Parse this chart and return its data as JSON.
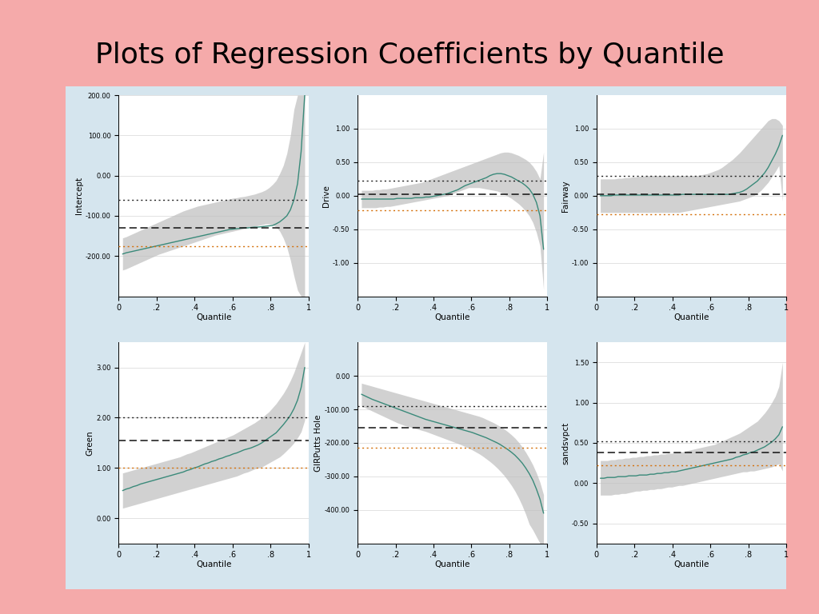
{
  "title": "Plots of Regression Coefficients by Quantile",
  "title_fontsize": 26,
  "background_color": "#F5AAAA",
  "panel_color": "#D5E5EE",
  "subplots": [
    {
      "ylabel": "Intercept",
      "ylim": [
        -300,
        200
      ],
      "yticks": [
        -200,
        -100,
        0,
        100,
        200
      ],
      "ols_coef": -130,
      "ols_upper": -60,
      "ols_lower": -175,
      "qr_line": [
        -195,
        -192,
        -190,
        -188,
        -186,
        -184,
        -182,
        -180,
        -178,
        -176,
        -174,
        -172,
        -170,
        -168,
        -166,
        -164,
        -162,
        -160,
        -158,
        -156,
        -154,
        -152,
        -150,
        -148,
        -146,
        -144,
        -142,
        -140,
        -138,
        -136,
        -134,
        -133,
        -132,
        -131,
        -130,
        -130,
        -129,
        -128,
        -128,
        -127,
        -126,
        -125,
        -124,
        -120,
        -115,
        -108,
        -100,
        -85,
        -60,
        -20,
        60,
        200
      ],
      "ci_upper": [
        -155,
        -152,
        -148,
        -144,
        -140,
        -136,
        -132,
        -128,
        -124,
        -120,
        -116,
        -112,
        -108,
        -104,
        -100,
        -96,
        -92,
        -88,
        -85,
        -82,
        -79,
        -76,
        -74,
        -72,
        -70,
        -68,
        -66,
        -64,
        -62,
        -60,
        -58,
        -56,
        -55,
        -53,
        -52,
        -50,
        -48,
        -46,
        -43,
        -40,
        -36,
        -30,
        -22,
        -12,
        5,
        25,
        55,
        100,
        165,
        200,
        200,
        200
      ],
      "ci_lower": [
        -235,
        -232,
        -228,
        -224,
        -220,
        -216,
        -212,
        -208,
        -204,
        -200,
        -196,
        -193,
        -190,
        -187,
        -184,
        -181,
        -178,
        -175,
        -172,
        -169,
        -166,
        -163,
        -160,
        -157,
        -154,
        -151,
        -148,
        -146,
        -144,
        -142,
        -140,
        -138,
        -136,
        -134,
        -132,
        -130,
        -128,
        -126,
        -124,
        -122,
        -120,
        -120,
        -122,
        -128,
        -138,
        -155,
        -178,
        -210,
        -250,
        -285,
        -300,
        -300
      ]
    },
    {
      "ylabel": "Drive",
      "ylim": [
        -1.5,
        1.5
      ],
      "yticks": [
        -1.0,
        -0.5,
        0.0,
        0.5,
        1.0
      ],
      "ols_coef": 0.02,
      "ols_upper": 0.22,
      "ols_lower": -0.22,
      "qr_line": [
        -0.05,
        -0.05,
        -0.05,
        -0.05,
        -0.05,
        -0.05,
        -0.05,
        -0.05,
        -0.05,
        -0.05,
        -0.04,
        -0.04,
        -0.04,
        -0.04,
        -0.04,
        -0.03,
        -0.03,
        -0.03,
        -0.02,
        -0.02,
        -0.01,
        0.0,
        0.01,
        0.02,
        0.03,
        0.05,
        0.07,
        0.09,
        0.12,
        0.15,
        0.17,
        0.19,
        0.21,
        0.23,
        0.25,
        0.27,
        0.3,
        0.32,
        0.33,
        0.33,
        0.32,
        0.3,
        0.28,
        0.25,
        0.22,
        0.19,
        0.15,
        0.1,
        0.02,
        -0.1,
        -0.3,
        -0.8
      ],
      "ci_upper": [
        0.08,
        0.08,
        0.08,
        0.08,
        0.09,
        0.09,
        0.1,
        0.1,
        0.11,
        0.12,
        0.13,
        0.14,
        0.15,
        0.16,
        0.17,
        0.18,
        0.19,
        0.2,
        0.22,
        0.24,
        0.26,
        0.28,
        0.3,
        0.32,
        0.34,
        0.36,
        0.38,
        0.4,
        0.42,
        0.44,
        0.46,
        0.48,
        0.5,
        0.52,
        0.54,
        0.56,
        0.58,
        0.6,
        0.62,
        0.64,
        0.65,
        0.65,
        0.64,
        0.62,
        0.6,
        0.57,
        0.54,
        0.5,
        0.44,
        0.36,
        0.25,
        0.65
      ],
      "ci_lower": [
        -0.18,
        -0.18,
        -0.18,
        -0.18,
        -0.18,
        -0.17,
        -0.17,
        -0.16,
        -0.16,
        -0.15,
        -0.14,
        -0.13,
        -0.12,
        -0.11,
        -0.1,
        -0.09,
        -0.08,
        -0.07,
        -0.06,
        -0.05,
        -0.04,
        -0.03,
        -0.02,
        -0.01,
        0.0,
        0.02,
        0.04,
        0.06,
        0.08,
        0.1,
        0.12,
        0.12,
        0.12,
        0.12,
        0.11,
        0.1,
        0.09,
        0.08,
        0.07,
        0.05,
        0.02,
        -0.01,
        -0.04,
        -0.08,
        -0.12,
        -0.17,
        -0.23,
        -0.3,
        -0.4,
        -0.55,
        -0.75,
        -1.4
      ]
    },
    {
      "ylabel": "Fairway",
      "ylim": [
        -1.5,
        1.5
      ],
      "yticks": [
        -1.0,
        -0.5,
        0.0,
        0.5,
        1.0
      ],
      "ols_coef": 0.02,
      "ols_upper": 0.3,
      "ols_lower": -0.28,
      "qr_line": [
        0.0,
        0.0,
        0.0,
        0.0,
        0.01,
        0.01,
        0.01,
        0.01,
        0.01,
        0.01,
        0.01,
        0.01,
        0.01,
        0.01,
        0.01,
        0.01,
        0.01,
        0.01,
        0.01,
        0.01,
        0.01,
        0.01,
        0.01,
        0.02,
        0.02,
        0.02,
        0.02,
        0.02,
        0.02,
        0.02,
        0.02,
        0.02,
        0.02,
        0.02,
        0.02,
        0.02,
        0.02,
        0.03,
        0.04,
        0.05,
        0.07,
        0.1,
        0.14,
        0.18,
        0.22,
        0.28,
        0.34,
        0.42,
        0.52,
        0.62,
        0.74,
        0.9
      ],
      "ci_upper": [
        0.25,
        0.25,
        0.25,
        0.25,
        0.25,
        0.26,
        0.26,
        0.27,
        0.27,
        0.28,
        0.28,
        0.29,
        0.29,
        0.3,
        0.3,
        0.3,
        0.3,
        0.3,
        0.3,
        0.3,
        0.3,
        0.3,
        0.3,
        0.3,
        0.3,
        0.3,
        0.3,
        0.3,
        0.31,
        0.32,
        0.33,
        0.35,
        0.37,
        0.39,
        0.42,
        0.46,
        0.5,
        0.54,
        0.59,
        0.64,
        0.7,
        0.76,
        0.82,
        0.88,
        0.94,
        1.0,
        1.06,
        1.12,
        1.15,
        1.15,
        1.12,
        1.05
      ],
      "ci_lower": [
        -0.25,
        -0.25,
        -0.25,
        -0.25,
        -0.25,
        -0.25,
        -0.25,
        -0.25,
        -0.25,
        -0.25,
        -0.25,
        -0.25,
        -0.25,
        -0.25,
        -0.25,
        -0.25,
        -0.25,
        -0.25,
        -0.25,
        -0.25,
        -0.25,
        -0.25,
        -0.25,
        -0.24,
        -0.23,
        -0.22,
        -0.21,
        -0.2,
        -0.19,
        -0.18,
        -0.17,
        -0.16,
        -0.15,
        -0.14,
        -0.13,
        -0.12,
        -0.11,
        -0.1,
        -0.09,
        -0.08,
        -0.06,
        -0.04,
        -0.02,
        0.0,
        0.04,
        0.08,
        0.14,
        0.2,
        0.28,
        0.36,
        0.45,
        -0.08
      ]
    },
    {
      "ylabel": "Green",
      "ylim": [
        -0.5,
        3.5
      ],
      "yticks": [
        0.0,
        1.0,
        2.0,
        3.0
      ],
      "ols_coef": 1.55,
      "ols_upper": 2.0,
      "ols_lower": 1.0,
      "qr_line": [
        0.55,
        0.58,
        0.6,
        0.63,
        0.65,
        0.68,
        0.7,
        0.72,
        0.74,
        0.76,
        0.78,
        0.8,
        0.82,
        0.84,
        0.86,
        0.88,
        0.9,
        0.92,
        0.95,
        0.97,
        1.0,
        1.02,
        1.05,
        1.08,
        1.1,
        1.13,
        1.15,
        1.18,
        1.2,
        1.23,
        1.25,
        1.28,
        1.3,
        1.33,
        1.36,
        1.38,
        1.4,
        1.43,
        1.46,
        1.5,
        1.55,
        1.6,
        1.65,
        1.7,
        1.78,
        1.86,
        1.95,
        2.05,
        2.18,
        2.35,
        2.6,
        3.0
      ],
      "ci_upper": [
        0.9,
        0.92,
        0.94,
        0.96,
        0.98,
        1.0,
        1.02,
        1.04,
        1.06,
        1.08,
        1.1,
        1.12,
        1.14,
        1.16,
        1.18,
        1.2,
        1.22,
        1.25,
        1.28,
        1.3,
        1.33,
        1.36,
        1.39,
        1.42,
        1.45,
        1.48,
        1.51,
        1.54,
        1.57,
        1.6,
        1.63,
        1.66,
        1.7,
        1.74,
        1.78,
        1.82,
        1.86,
        1.9,
        1.95,
        2.0,
        2.06,
        2.12,
        2.2,
        2.28,
        2.38,
        2.48,
        2.6,
        2.74,
        2.9,
        3.1,
        3.3,
        3.5
      ],
      "ci_lower": [
        0.2,
        0.22,
        0.24,
        0.26,
        0.28,
        0.3,
        0.32,
        0.34,
        0.36,
        0.38,
        0.4,
        0.42,
        0.44,
        0.46,
        0.48,
        0.5,
        0.52,
        0.54,
        0.56,
        0.58,
        0.6,
        0.62,
        0.64,
        0.66,
        0.68,
        0.7,
        0.72,
        0.74,
        0.76,
        0.78,
        0.8,
        0.82,
        0.84,
        0.87,
        0.9,
        0.92,
        0.95,
        0.98,
        1.0,
        1.02,
        1.06,
        1.1,
        1.14,
        1.18,
        1.22,
        1.28,
        1.35,
        1.42,
        1.5,
        1.6,
        1.72,
        1.95
      ]
    },
    {
      "ylabel": "GIRPutts Hole",
      "ylim": [
        -500,
        100
      ],
      "yticks": [
        -400,
        -300,
        -200,
        -100,
        0
      ],
      "ols_coef": -155,
      "ols_upper": -90,
      "ols_lower": -215,
      "qr_line": [
        -55,
        -60,
        -65,
        -70,
        -74,
        -78,
        -82,
        -86,
        -90,
        -94,
        -98,
        -102,
        -106,
        -110,
        -114,
        -118,
        -122,
        -126,
        -130,
        -133,
        -136,
        -139,
        -142,
        -145,
        -148,
        -151,
        -154,
        -157,
        -160,
        -163,
        -166,
        -169,
        -173,
        -177,
        -181,
        -185,
        -190,
        -195,
        -200,
        -206,
        -213,
        -220,
        -228,
        -237,
        -248,
        -260,
        -275,
        -292,
        -312,
        -338,
        -368,
        -410
      ],
      "ci_upper": [
        -22,
        -25,
        -28,
        -31,
        -34,
        -37,
        -40,
        -43,
        -46,
        -49,
        -52,
        -55,
        -58,
        -61,
        -64,
        -67,
        -70,
        -73,
        -76,
        -79,
        -82,
        -85,
        -88,
        -91,
        -94,
        -97,
        -100,
        -103,
        -106,
        -109,
        -112,
        -115,
        -118,
        -121,
        -125,
        -130,
        -135,
        -140,
        -146,
        -152,
        -159,
        -167,
        -176,
        -186,
        -198,
        -212,
        -228,
        -246,
        -266,
        -290,
        -318,
        -355
      ],
      "ci_lower": [
        -90,
        -95,
        -100,
        -105,
        -110,
        -115,
        -120,
        -125,
        -130,
        -135,
        -140,
        -144,
        -148,
        -151,
        -154,
        -157,
        -160,
        -163,
        -166,
        -170,
        -174,
        -178,
        -182,
        -186,
        -190,
        -194,
        -198,
        -202,
        -206,
        -211,
        -216,
        -221,
        -227,
        -233,
        -240,
        -248,
        -256,
        -265,
        -275,
        -286,
        -298,
        -312,
        -327,
        -344,
        -364,
        -387,
        -413,
        -443,
        -460,
        -480,
        -500,
        -500
      ]
    },
    {
      "ylabel": "sandsvpct",
      "ylim": [
        -0.75,
        1.75
      ],
      "yticks": [
        -0.5,
        0.0,
        0.5,
        1.0,
        1.5
      ],
      "ols_coef": 0.38,
      "ols_upper": 0.52,
      "ols_lower": 0.22,
      "qr_line": [
        0.06,
        0.06,
        0.07,
        0.07,
        0.07,
        0.08,
        0.08,
        0.08,
        0.09,
        0.09,
        0.09,
        0.1,
        0.1,
        0.1,
        0.11,
        0.11,
        0.12,
        0.12,
        0.13,
        0.13,
        0.14,
        0.14,
        0.15,
        0.16,
        0.17,
        0.18,
        0.19,
        0.2,
        0.21,
        0.22,
        0.23,
        0.24,
        0.25,
        0.26,
        0.27,
        0.28,
        0.29,
        0.3,
        0.32,
        0.33,
        0.35,
        0.36,
        0.38,
        0.39,
        0.41,
        0.43,
        0.45,
        0.48,
        0.51,
        0.55,
        0.6,
        0.7
      ],
      "ci_upper": [
        0.28,
        0.28,
        0.28,
        0.29,
        0.29,
        0.3,
        0.3,
        0.31,
        0.31,
        0.32,
        0.32,
        0.33,
        0.33,
        0.34,
        0.34,
        0.35,
        0.35,
        0.36,
        0.36,
        0.37,
        0.37,
        0.38,
        0.38,
        0.39,
        0.4,
        0.41,
        0.42,
        0.43,
        0.44,
        0.45,
        0.46,
        0.47,
        0.48,
        0.5,
        0.52,
        0.54,
        0.56,
        0.58,
        0.6,
        0.62,
        0.65,
        0.68,
        0.71,
        0.74,
        0.77,
        0.82,
        0.87,
        0.93,
        1.0,
        1.08,
        1.2,
        1.5
      ],
      "ci_lower": [
        -0.15,
        -0.15,
        -0.15,
        -0.15,
        -0.14,
        -0.14,
        -0.13,
        -0.13,
        -0.12,
        -0.11,
        -0.1,
        -0.1,
        -0.09,
        -0.09,
        -0.08,
        -0.08,
        -0.07,
        -0.07,
        -0.06,
        -0.05,
        -0.05,
        -0.04,
        -0.03,
        -0.03,
        -0.02,
        -0.01,
        0.0,
        0.01,
        0.02,
        0.03,
        0.04,
        0.05,
        0.06,
        0.07,
        0.08,
        0.09,
        0.1,
        0.11,
        0.12,
        0.13,
        0.14,
        0.14,
        0.15,
        0.15,
        0.16,
        0.17,
        0.18,
        0.19,
        0.2,
        0.22,
        0.24,
        0.15
      ]
    }
  ],
  "line_color": "#3A8A7A",
  "band_color": "#BEBEBE",
  "band_alpha": 0.7,
  "ols_dash_color": "#111111",
  "ols_upper_dot_color": "#222222",
  "ols_lower_dot_color": "#D4700A"
}
